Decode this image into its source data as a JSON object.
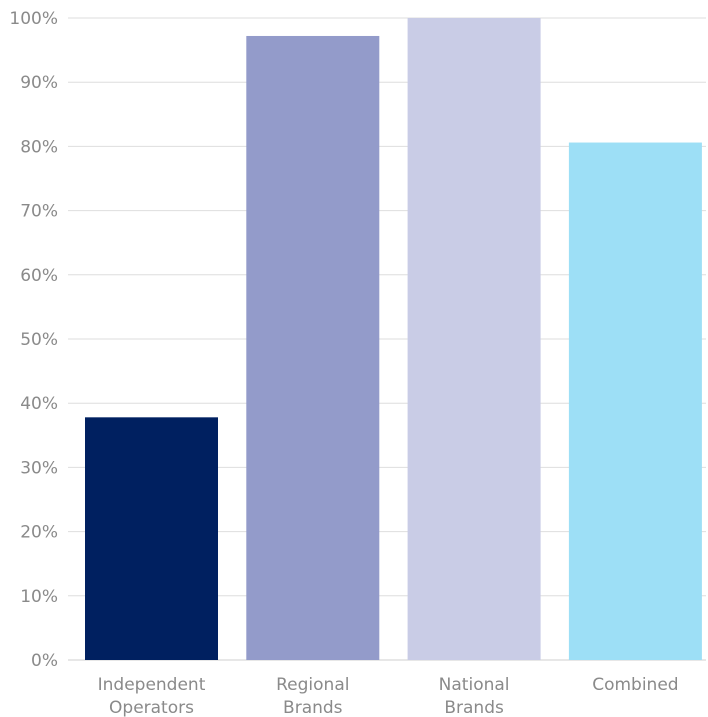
{
  "chart_data": {
    "type": "bar",
    "title": "",
    "xlabel": "",
    "ylabel": "",
    "categories": [
      [
        "Independent",
        "Operators"
      ],
      [
        "Regional",
        "Brands"
      ],
      [
        "National",
        "Brands"
      ],
      [
        "Combined"
      ]
    ],
    "values": [
      37.8,
      97.2,
      100,
      80.6
    ],
    "colors": [
      "#002060",
      "#939bca",
      "#c9cce6",
      "#9ddff6"
    ],
    "ylim": [
      0,
      100
    ],
    "yticks": [
      0,
      10,
      20,
      30,
      40,
      50,
      60,
      70,
      80,
      90,
      100
    ],
    "ytick_labels": [
      "0%",
      "10%",
      "20%",
      "30%",
      "40%",
      "50%",
      "60%",
      "70%",
      "80%",
      "90%",
      "100%"
    ],
    "grid": true,
    "legend": "none"
  }
}
